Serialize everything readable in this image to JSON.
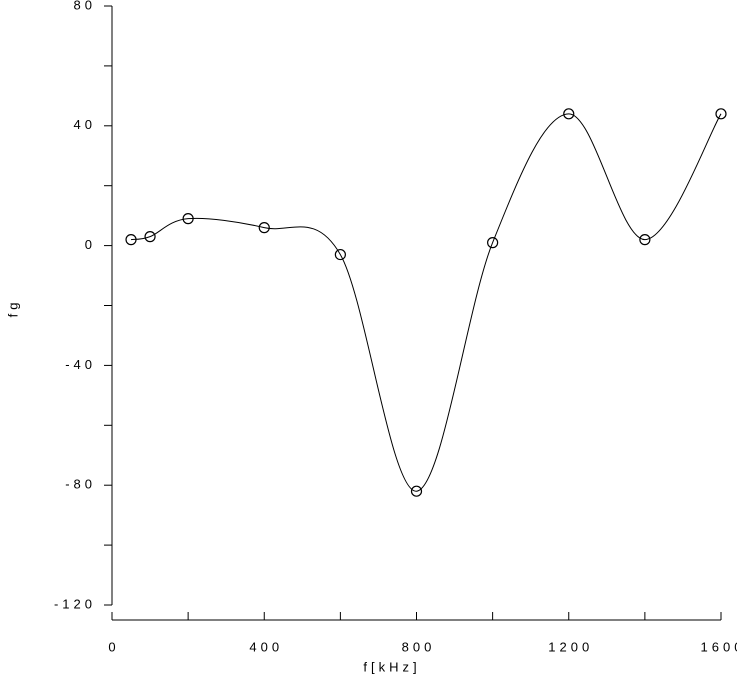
{
  "chart_data": {
    "type": "line",
    "x_label": "f[kHz]",
    "y_label": "fg",
    "x": [
      50,
      100,
      200,
      400,
      600,
      800,
      1000,
      1200,
      1400,
      1600
    ],
    "series": [
      {
        "color": "#000000",
        "values": [
          2,
          3,
          9,
          6,
          -3,
          -82,
          1,
          44,
          2,
          44
        ]
      }
    ],
    "xlim": [
      0,
      1600
    ],
    "xticks": [
      0,
      400,
      800,
      1200,
      1600
    ],
    "ylim": [
      -120,
      80
    ],
    "yticks": [
      -120,
      -80,
      -40,
      0,
      40,
      80
    ]
  }
}
